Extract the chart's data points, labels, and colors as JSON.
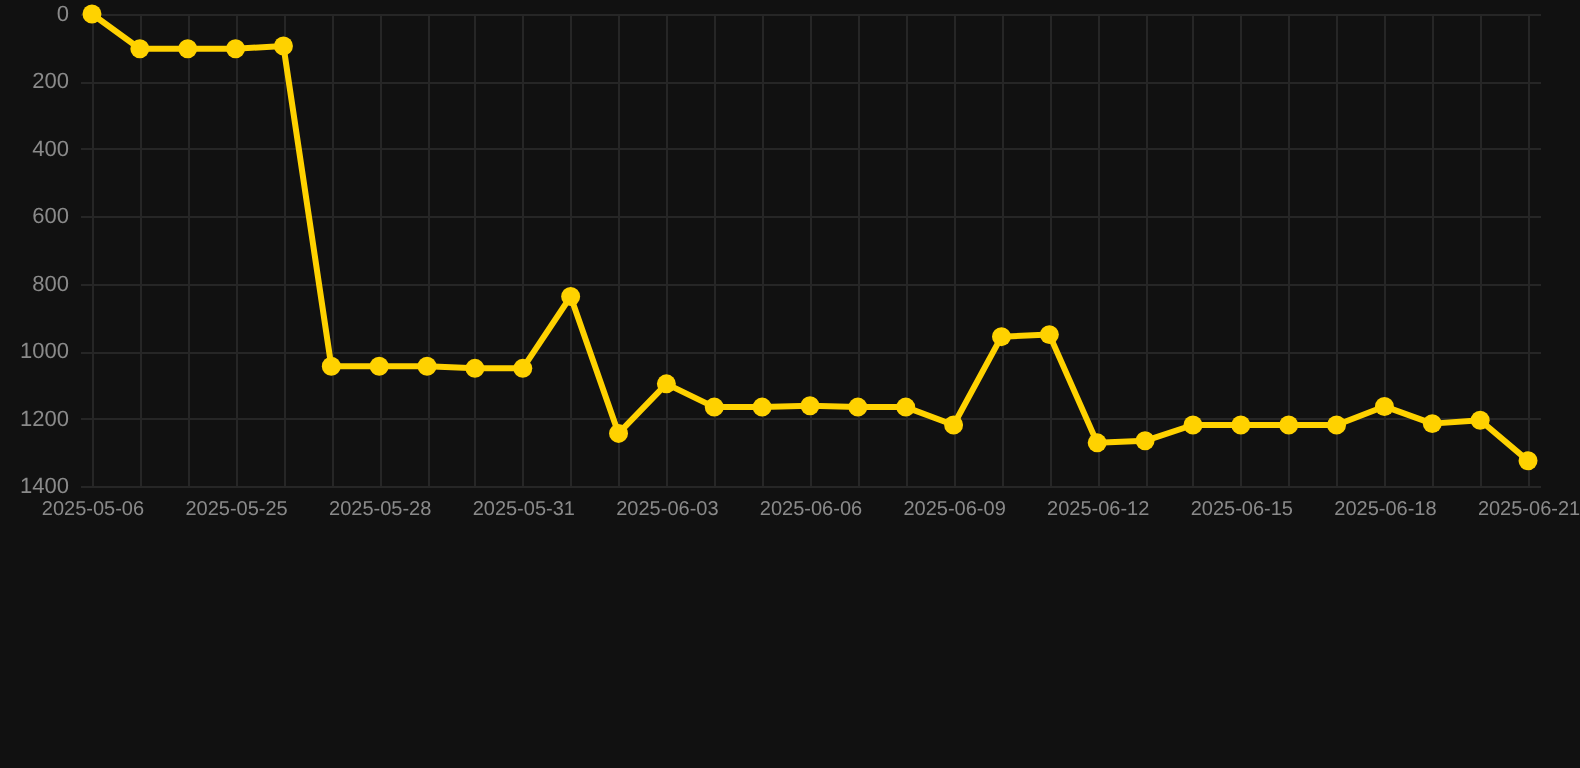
{
  "chart_data": {
    "type": "line",
    "categories": [
      "2025-05-06",
      null,
      null,
      "2025-05-25",
      null,
      null,
      "2025-05-28",
      null,
      null,
      "2025-05-31",
      null,
      null,
      "2025-06-03",
      null,
      null,
      "2025-06-06",
      null,
      null,
      "2025-06-09",
      null,
      null,
      "2025-06-12",
      null,
      null,
      "2025-06-15",
      null,
      null,
      "2025-06-18",
      null,
      null,
      "2025-06-21"
    ],
    "series": [
      {
        "color": "#ffd200",
        "values": [
          0,
          103,
          103,
          103,
          95,
          1045,
          1045,
          1045,
          1051,
          1051,
          838,
          1244,
          1097,
          1166,
          1166,
          1162,
          1166,
          1166,
          1219,
          957,
          951,
          1272,
          1266,
          1219,
          1219,
          1219,
          1219,
          1164,
          1215,
          1205,
          1325
        ]
      }
    ],
    "ylim": [
      1400,
      0
    ],
    "yticks": [
      0,
      200,
      400,
      600,
      800,
      1000,
      1200,
      1400
    ],
    "grid": true,
    "marker": "circle",
    "line_style": "solid"
  }
}
